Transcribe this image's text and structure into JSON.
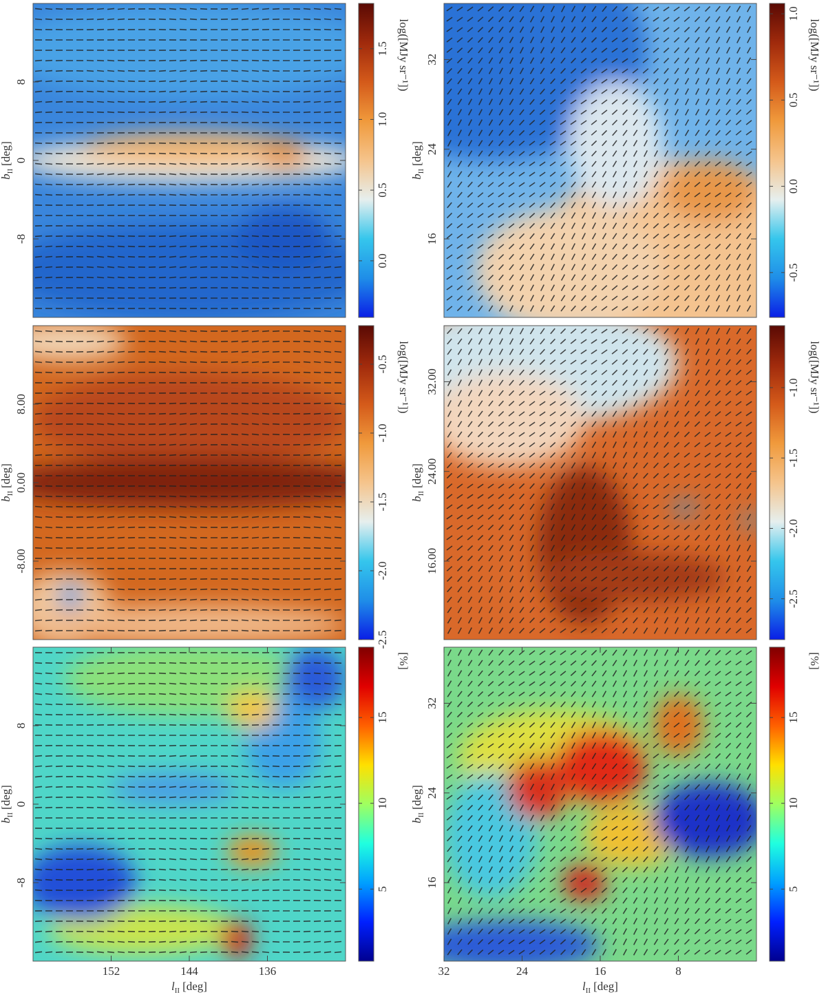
{
  "chart_data": [
    {
      "type": "heatmap",
      "ylim": [
        -16,
        16
      ],
      "yticks": [
        -8,
        0,
        8
      ],
      "ylabel": "b",
      "ylabel_sub": "II",
      "ylabel_unit": "[deg]",
      "colorbar": {
        "lim": [
          -0.4,
          1.82
        ],
        "ticks": [
          {
            "value": 0,
            "label": "0.0"
          },
          0.5,
          {
            "value": 1,
            "label": "1.0"
          },
          1.5
        ],
        "label": "log([MJy sr⁻¹])",
        "colormap": [
          "#0a1ee6",
          "#1f8ee8",
          "#35c6ec",
          "#e6efee",
          "#f5c48c",
          "#f09a3c",
          "#d45a1a",
          "#a02a0c",
          "#5a0a04"
        ]
      }
    },
    {
      "type": "heatmap",
      "ylim": [
        9,
        37
      ],
      "yticks": [
        16,
        24,
        32
      ],
      "ylabel": "b",
      "ylabel_sub": "II",
      "ylabel_unit": "[deg]",
      "colorbar": {
        "lim": [
          -0.76,
          1.06
        ],
        "ticks": [
          -0.5,
          {
            "value": 0,
            "label": "0.0"
          },
          0.5,
          {
            "value": 1,
            "label": "1.0"
          }
        ],
        "label": "log([MJy sr⁻¹])",
        "colormap": [
          "#0a1ee6",
          "#1f8ee8",
          "#35c6ec",
          "#e6efee",
          "#f5c48c",
          "#f09a3c",
          "#d45a1a",
          "#a02a0c",
          "#5a0a04"
        ]
      }
    },
    {
      "type": "heatmap",
      "ylim": [
        -16,
        16
      ],
      "yticks": [
        {
          "value": -8,
          "label": "-8.00"
        },
        {
          "value": 0,
          "label": "0.00"
        },
        {
          "value": 8,
          "label": "8.00"
        }
      ],
      "ylabel": "b",
      "ylabel_sub": "II",
      "ylabel_unit": "[deg]",
      "colorbar": {
        "lim": [
          -2.5,
          -0.22
        ],
        "ticks": [
          -2.5,
          {
            "value": -2,
            "label": "-2.0"
          },
          -1.5,
          {
            "value": -1,
            "label": "-1.0"
          },
          -0.5
        ],
        "label": "log([MJy sr⁻¹])",
        "colormap": [
          "#0a1ee6",
          "#1f8ee8",
          "#35c6ec",
          "#e6efee",
          "#f5c48c",
          "#f09a3c",
          "#d45a1a",
          "#a02a0c",
          "#5a0a04"
        ]
      }
    },
    {
      "type": "heatmap",
      "ylim": [
        9,
        37
      ],
      "yticks": [
        {
          "value": 16,
          "label": "16.00"
        },
        {
          "value": 24,
          "label": "24.00"
        },
        {
          "value": 32,
          "label": "32.00"
        }
      ],
      "ylabel": "b",
      "ylabel_sub": "II",
      "ylabel_unit": "[deg]",
      "colorbar": {
        "lim": [
          -2.79,
          -0.56
        ],
        "ticks": [
          -2.5,
          {
            "value": -2,
            "label": "-2.0"
          },
          -1.5,
          {
            "value": -1,
            "label": "-1.0"
          }
        ],
        "label": "log([MJy sr⁻¹])",
        "colormap": [
          "#0a1ee6",
          "#1f8ee8",
          "#35c6ec",
          "#e6efee",
          "#f5c48c",
          "#f09a3c",
          "#d45a1a",
          "#a02a0c",
          "#5a0a04"
        ]
      }
    },
    {
      "type": "heatmap",
      "xlim": [
        160,
        128
      ],
      "xticks": [
        152,
        144,
        136
      ],
      "xlabel": "l",
      "xlabel_sub": "II",
      "xlabel_unit": "[deg]",
      "ylim": [
        -16,
        16
      ],
      "yticks": [
        -8,
        0,
        8
      ],
      "ylabel": "b",
      "ylabel_sub": "II",
      "ylabel_unit": "[deg]",
      "colorbar": {
        "lim": [
          0.8,
          19.1
        ],
        "ticks": [
          5,
          10,
          15
        ],
        "label": "[%]",
        "colormap": [
          "#00008f",
          "#0020ff",
          "#00a0ff",
          "#20ffdf",
          "#9fff60",
          "#ffe000",
          "#ff6000",
          "#e00000",
          "#800000"
        ]
      }
    },
    {
      "type": "heatmap",
      "xlim": [
        32,
        0
      ],
      "xticks": [
        32,
        24,
        16,
        8
      ],
      "xlabel": "l",
      "xlabel_sub": "II",
      "xlabel_unit": "[deg]",
      "ylim": [
        9,
        37
      ],
      "yticks": [
        16,
        24,
        32
      ],
      "ylabel": "b",
      "ylabel_sub": "II",
      "ylabel_unit": "[deg]",
      "colorbar": {
        "lim": [
          0.8,
          19.1
        ],
        "ticks": [
          5,
          10,
          15
        ],
        "label": "[%]",
        "colormap": [
          "#00008f",
          "#0020ff",
          "#00a0ff",
          "#20ffdf",
          "#9fff60",
          "#ffe000",
          "#ff6000",
          "#e00000",
          "#800000"
        ]
      }
    }
  ]
}
